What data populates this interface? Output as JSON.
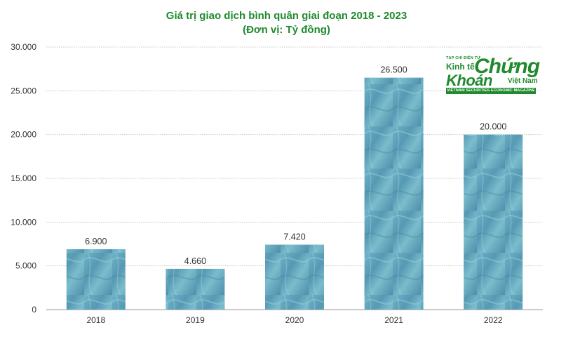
{
  "chart_data": {
    "type": "bar",
    "title": "Giá trị giao dịch bình quân giai đoạn 2018 - 2023",
    "subtitle": "(Đơn vị: Tỷ đồng)",
    "categories": [
      "2018",
      "2019",
      "2020",
      "2021",
      "2022"
    ],
    "values": [
      6900,
      4660,
      7420,
      26500,
      20000
    ],
    "value_labels": [
      "6.900",
      "4.660",
      "7.420",
      "26.500",
      "20.000"
    ],
    "ylim": [
      0,
      30000
    ],
    "yticks": [
      0,
      5000,
      10000,
      15000,
      20000,
      25000,
      30000
    ],
    "ytick_labels": [
      "0",
      "5.000",
      "10.000",
      "15.000",
      "20.000",
      "25.000",
      "30.000"
    ],
    "grid": true,
    "bar_color": "#5fa4bc"
  },
  "logo": {
    "small": "TẠP CHÍ ĐIỆN TỬ",
    "line1": "Kinh tế",
    "line2": "Chứng",
    "line3": "Khoán",
    "line4": "Việt Nam",
    "tagline": "VIETNAM SECURITIES ECONOMIC MAGAZINE"
  }
}
